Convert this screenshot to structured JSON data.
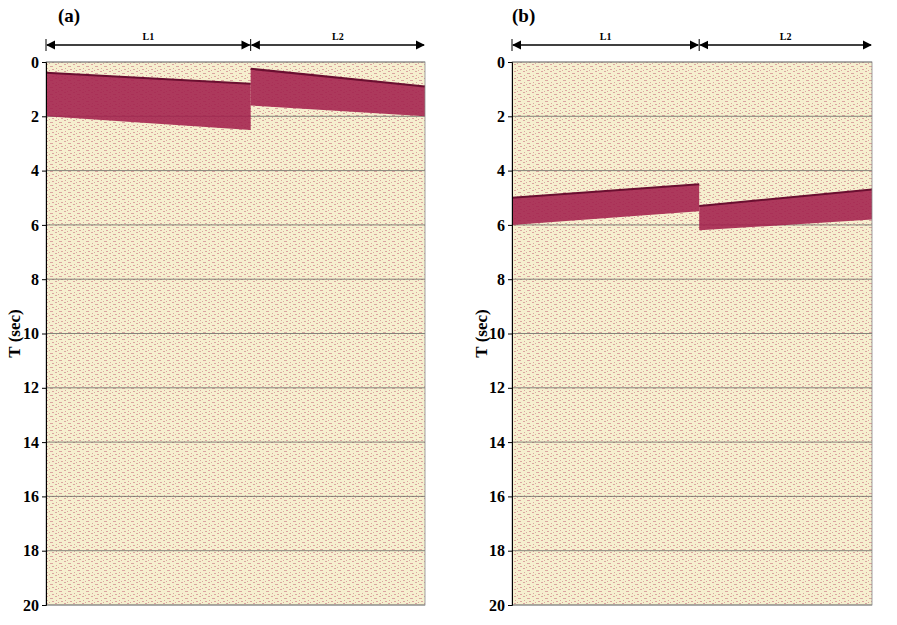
{
  "chart_data": [
    {
      "type": "area",
      "title": "(a)",
      "y_label": "T (sec)",
      "xlim": [
        0,
        1
      ],
      "ylim": [
        0,
        20
      ],
      "yticks": [
        0,
        2,
        4,
        6,
        8,
        10,
        12,
        14,
        16,
        18,
        20
      ],
      "grid": true,
      "tick_labels": "y",
      "series": [
        {
          "name": "L1",
          "color": "#a3204c",
          "x": [
            0,
            0.54
          ],
          "values": [
            0.4,
            0.8
          ],
          "bottom": [
            2.0,
            2.5
          ]
        },
        {
          "name": "L2",
          "color": "#a3204c",
          "x": [
            0.54,
            1
          ],
          "values": [
            0.25,
            0.9
          ],
          "bottom": [
            1.6,
            2.0
          ]
        }
      ]
    },
    {
      "type": "area",
      "title": "(b)",
      "y_label": "T (sec)",
      "xlim": [
        0,
        1
      ],
      "ylim": [
        0,
        20
      ],
      "yticks": [
        0,
        2,
        4,
        6,
        8,
        10,
        12,
        14,
        16,
        18,
        20
      ],
      "grid": true,
      "tick_labels": "y",
      "series": [
        {
          "name": "L1",
          "color": "#a3204c",
          "x": [
            0,
            0.52
          ],
          "values": [
            5.0,
            4.5
          ],
          "bottom": [
            6.0,
            5.5
          ]
        },
        {
          "name": "L2",
          "color": "#a3204c",
          "x": [
            0.52,
            1
          ],
          "values": [
            5.3,
            4.7
          ],
          "bottom": [
            6.2,
            5.8
          ]
        }
      ]
    }
  ]
}
